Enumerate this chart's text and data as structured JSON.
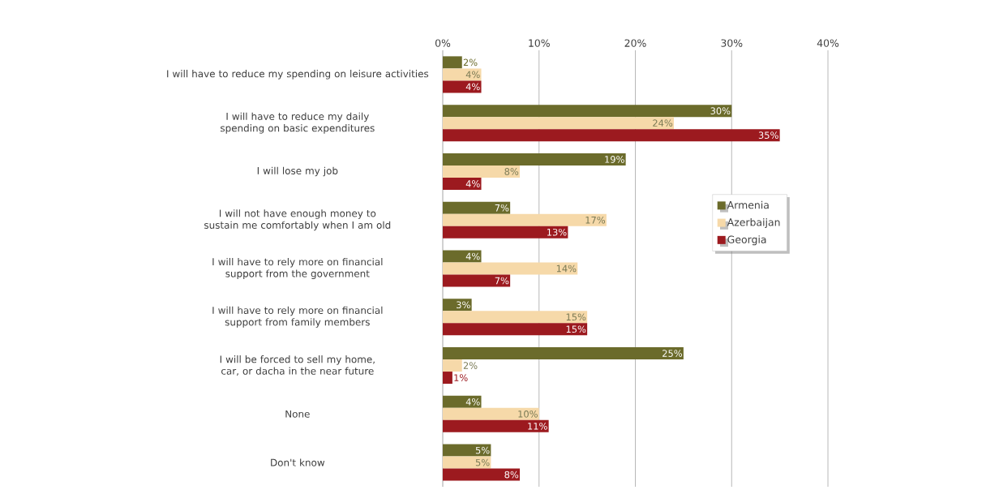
{
  "chart_data": {
    "type": "bar",
    "orientation": "horizontal",
    "categories": [
      "I will have to reduce my spending on leisure activities",
      "I will have to reduce my daily spending on basic expenditures",
      "I will lose my job",
      "I will not have enough money to sustain me comfortably when I am old",
      "I will have to rely more on financial support from the government",
      "I will have to rely more on financial support from family members",
      "I will be forced to sell my home, car, or dacha in the near future",
      "None",
      "Don't know"
    ],
    "series": [
      {
        "name": "Armenia",
        "color": "#6b6b2b",
        "values": [
          2,
          30,
          19,
          7,
          4,
          3,
          25,
          4,
          5
        ],
        "value_labels": [
          "2%",
          "30%",
          "19%",
          "7%",
          "4%",
          "3%",
          "25%",
          "4%",
          "5%"
        ]
      },
      {
        "name": "Azerbaijan",
        "color": "#f6d9a9",
        "values": [
          4,
          24,
          8,
          17,
          14,
          15,
          2,
          10,
          5
        ],
        "value_labels": [
          "4%",
          "24%",
          "8%",
          "17%",
          "14%",
          "15%",
          "2%",
          "10%",
          "5%"
        ]
      },
      {
        "name": "Georgia",
        "color": "#9c1a1f",
        "values": [
          4,
          35,
          4,
          13,
          7,
          15,
          1,
          11,
          8
        ],
        "value_labels": [
          "4%",
          "35%",
          "4%",
          "13%",
          "7%",
          "15%",
          "1%",
          "11%",
          "8%"
        ]
      }
    ],
    "xlim": [
      0,
      40
    ],
    "xticks": [
      {
        "value": 0,
        "label": "0%"
      },
      {
        "value": 10,
        "label": "10%"
      },
      {
        "value": 20,
        "label": "20%"
      },
      {
        "value": 30,
        "label": "30%"
      },
      {
        "value": 40,
        "label": "40%"
      }
    ],
    "grid": "x",
    "legend": "right"
  }
}
